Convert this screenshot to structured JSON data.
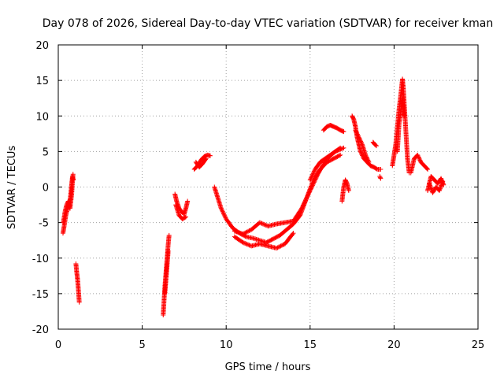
{
  "chart_data": {
    "type": "scatter",
    "title": "Day 078 of 2026, Sidereal Day-to-day VTEC variation (SDTVAR) for receiver kman",
    "xlabel": "GPS time / hours",
    "ylabel": "SDTVAR / TECUs",
    "xlim": [
      0,
      25
    ],
    "ylim": [
      -20,
      20
    ],
    "xticks": [
      0,
      5,
      10,
      15,
      20,
      25
    ],
    "yticks": [
      -20,
      -15,
      -10,
      -5,
      0,
      5,
      10,
      15,
      20
    ],
    "grid": true,
    "marker": "+",
    "color": "#ff0000",
    "series": [
      {
        "name": "SDTVAR",
        "segments": [
          {
            "x": [
              0.28,
              0.35,
              0.45,
              0.55,
              0.65,
              0.72,
              0.8,
              0.85,
              0.9
            ],
            "y": [
              -6.5,
              -5.5,
              -4.0,
              -3.0,
              -2.5,
              -1.5,
              0.5,
              1.5,
              1.0
            ]
          },
          {
            "x": [
              0.3,
              0.4,
              0.5,
              0.6,
              0.7,
              0.8,
              0.88
            ],
            "y": [
              -5.0,
              -3.5,
              -2.5,
              -2.0,
              -3.0,
              -1.0,
              1.8
            ]
          },
          {
            "x": [
              1.05,
              1.1,
              1.15,
              1.2,
              1.25
            ],
            "y": [
              -10.8,
              -12.0,
              -13.0,
              -14.5,
              -16.2
            ]
          },
          {
            "x": [
              6.25,
              6.3,
              6.35,
              6.4,
              6.45,
              6.5,
              6.55,
              6.6
            ],
            "y": [
              -18.0,
              -16.0,
              -14.0,
              -12.5,
              -11.0,
              -9.5,
              -8.0,
              -6.8
            ]
          },
          {
            "x": [
              6.35,
              6.45,
              6.55
            ],
            "y": [
              -15.0,
              -12.0,
              -9.0
            ]
          },
          {
            "x": [
              6.95,
              7.05,
              7.2,
              7.35,
              7.5,
              7.6,
              7.7
            ],
            "y": [
              -1.0,
              -2.0,
              -3.0,
              -3.5,
              -3.8,
              -3.0,
              -2.0
            ]
          },
          {
            "x": [
              7.0,
              7.2,
              7.4,
              7.6
            ],
            "y": [
              -2.5,
              -4.0,
              -4.5,
              -4.2
            ]
          },
          {
            "x": [
              8.1,
              8.3,
              8.5,
              8.7,
              8.9,
              9.05
            ],
            "y": [
              2.5,
              3.0,
              3.8,
              4.3,
              4.5,
              4.4
            ]
          },
          {
            "x": [
              8.2,
              8.4,
              8.6,
              8.8
            ],
            "y": [
              3.5,
              2.8,
              3.3,
              4.0
            ]
          },
          {
            "x": [
              9.3,
              9.5,
              9.7,
              10.0,
              10.4,
              10.8,
              11.2,
              11.6,
              12.0,
              12.4,
              12.8,
              13.2,
              13.6,
              14.0,
              14.4,
              14.8,
              15.2,
              15.6,
              16.0,
              16.4,
              16.8
            ],
            "y": [
              0.0,
              -1.5,
              -3.0,
              -4.5,
              -5.8,
              -6.5,
              -7.0,
              -7.2,
              -7.5,
              -7.8,
              -7.3,
              -6.8,
              -6.0,
              -5.2,
              -4.0,
              -1.5,
              1.0,
              2.5,
              3.5,
              4.0,
              4.5
            ]
          },
          {
            "x": [
              10.5,
              11.0,
              11.5,
              12.0,
              12.5,
              13.0,
              13.5,
              14.0
            ],
            "y": [
              -7.0,
              -7.8,
              -8.3,
              -8.0,
              -8.3,
              -8.6,
              -8.0,
              -6.5
            ]
          },
          {
            "x": [
              10.5,
              11.0,
              11.5,
              12.0,
              12.5,
              13.0,
              13.5,
              14.0,
              14.5,
              15.0,
              15.5,
              16.0,
              16.5,
              17.0
            ],
            "y": [
              -6.2,
              -6.6,
              -6.0,
              -5.0,
              -5.5,
              -5.2,
              -5.0,
              -4.8,
              -3.0,
              -0.5,
              2.0,
              4.0,
              5.0,
              5.5
            ]
          },
          {
            "x": [
              15.0,
              15.3,
              15.6,
              15.9,
              16.2,
              16.5,
              16.8
            ],
            "y": [
              1.0,
              2.5,
              3.5,
              4.0,
              4.5,
              5.0,
              5.5
            ]
          },
          {
            "x": [
              15.8,
              16.0,
              16.2,
              16.4,
              16.6,
              16.8,
              17.0
            ],
            "y": [
              8.0,
              8.5,
              8.7,
              8.5,
              8.3,
              8.0,
              7.8
            ]
          },
          {
            "x": [
              16.9,
              17.0,
              17.1,
              17.2,
              17.3
            ],
            "y": [
              -2.0,
              0.0,
              1.0,
              0.5,
              -0.5
            ]
          },
          {
            "x": [
              17.5,
              17.6,
              17.7,
              17.8,
              17.9,
              18.0,
              18.2,
              18.4,
              18.6,
              18.8,
              19.0,
              19.2
            ],
            "y": [
              10.0,
              9.5,
              8.5,
              7.0,
              6.0,
              5.0,
              4.0,
              3.5,
              3.0,
              2.8,
              2.5,
              2.5
            ]
          },
          {
            "x": [
              17.7,
              17.9,
              18.1,
              18.3,
              18.5
            ],
            "y": [
              8.0,
              7.0,
              6.0,
              4.5,
              3.5
            ]
          },
          {
            "x": [
              18.75,
              18.85,
              18.95
            ],
            "y": [
              6.3,
              6.0,
              5.8
            ]
          },
          {
            "x": [
              19.15,
              19.2
            ],
            "y": [
              1.5,
              1.2
            ]
          },
          {
            "x": [
              19.9,
              20.0,
              20.1,
              20.2,
              20.3,
              20.4,
              20.5,
              20.55,
              20.6,
              20.7,
              20.8,
              20.9
            ],
            "y": [
              3.0,
              4.5,
              6.0,
              8.5,
              11.0,
              13.0,
              15.2,
              14.0,
              12.0,
              8.0,
              4.0,
              2.0
            ]
          },
          {
            "x": [
              20.2,
              20.3,
              20.4,
              20.5,
              20.6
            ],
            "y": [
              5.0,
              9.0,
              10.5,
              12.5,
              10.0
            ]
          },
          {
            "x": [
              21.0,
              21.2,
              21.4,
              21.6,
              21.8,
              22.0
            ],
            "y": [
              2.0,
              4.0,
              4.5,
              3.5,
              3.0,
              2.5
            ]
          },
          {
            "x": [
              22.0,
              22.2,
              22.4,
              22.6,
              22.8,
              22.95
            ],
            "y": [
              -0.5,
              1.5,
              1.0,
              0.5,
              1.2,
              0.3
            ]
          },
          {
            "x": [
              22.1,
              22.3,
              22.5,
              22.7,
              22.9
            ],
            "y": [
              0.5,
              -0.8,
              0.0,
              -0.5,
              0.8
            ]
          }
        ]
      }
    ]
  }
}
